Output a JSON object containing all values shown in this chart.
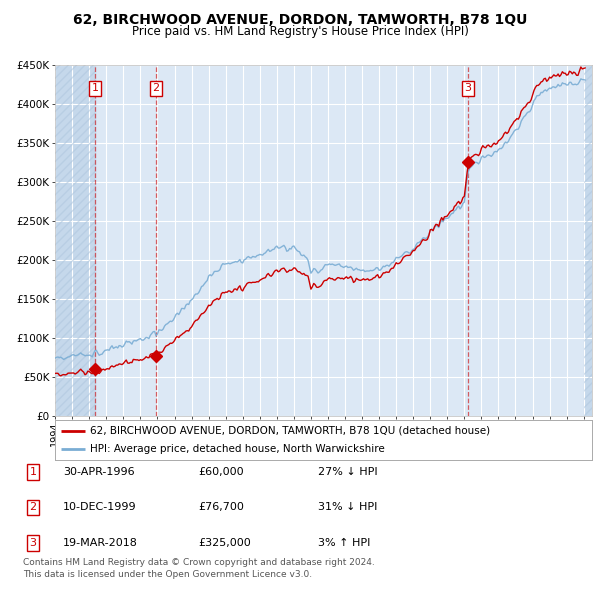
{
  "title": "62, BIRCHWOOD AVENUE, DORDON, TAMWORTH, B78 1QU",
  "subtitle": "Price paid vs. HM Land Registry's House Price Index (HPI)",
  "sale_years_float": [
    1996.33,
    1999.92,
    2018.21
  ],
  "sale_prices": [
    60000,
    76700,
    325000
  ],
  "sale_labels": [
    "1",
    "2",
    "3"
  ],
  "legend_property": "62, BIRCHWOOD AVENUE, DORDON, TAMWORTH, B78 1QU (detached house)",
  "legend_hpi": "HPI: Average price, detached house, North Warwickshire",
  "table_rows": [
    {
      "num": "1",
      "date": "30-APR-1996",
      "price": "£60,000",
      "hpi": "27% ↓ HPI"
    },
    {
      "num": "2",
      "date": "10-DEC-1999",
      "price": "£76,700",
      "hpi": "31% ↓ HPI"
    },
    {
      "num": "3",
      "date": "19-MAR-2018",
      "price": "£325,000",
      "hpi": "3% ↑ HPI"
    }
  ],
  "footnote1": "Contains HM Land Registry data © Crown copyright and database right 2024.",
  "footnote2": "This data is licensed under the Open Government Licence v3.0.",
  "property_color": "#cc0000",
  "hpi_color": "#7aadd4",
  "vline_color": "#cc0000",
  "ylim": [
    0,
    450000
  ],
  "yticks": [
    0,
    50000,
    100000,
    150000,
    200000,
    250000,
    300000,
    350000,
    400000,
    450000
  ],
  "ytick_labels": [
    "£0",
    "£50K",
    "£100K",
    "£150K",
    "£200K",
    "£250K",
    "£300K",
    "£350K",
    "£400K",
    "£450K"
  ],
  "xlim_start": 1994.0,
  "xlim_end": 2025.5,
  "hatch_end": 1996.33,
  "hatch_start_right": 2025.0,
  "bg_color": "#dce8f5",
  "hatch_color": "#c5d8eb",
  "grid_color": "#ffffff"
}
